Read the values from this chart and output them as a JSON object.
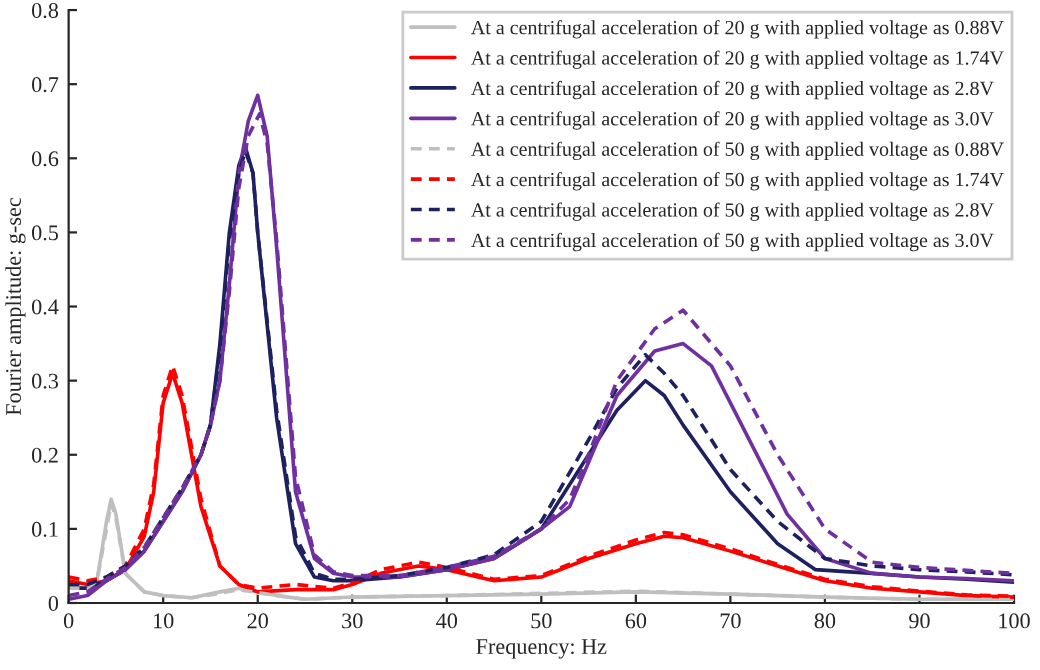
{
  "chart_data": {
    "type": "line",
    "xlabel": "Frequency: Hz",
    "ylabel": "Fourier amplitude: g-sec",
    "xlim": [
      0,
      100
    ],
    "ylim": [
      0,
      0.8
    ],
    "xticks": [
      0,
      10,
      20,
      30,
      40,
      50,
      60,
      70,
      80,
      90,
      100
    ],
    "yticks": [
      0,
      0.1,
      0.2,
      0.3,
      0.4,
      0.5,
      0.6,
      0.7,
      0.8
    ],
    "grid": false,
    "legend": "top right",
    "marker": "none",
    "series": [
      {
        "name": "At a centrifugal acceleration of 20 g with applied voltage as 0.88V",
        "color": "#bfbfbf",
        "line_style": "solid",
        "x": [
          0,
          2,
          3,
          4,
          4.5,
          5,
          6,
          8,
          10,
          13,
          16,
          18,
          20,
          22,
          25,
          30,
          40,
          50,
          60,
          70,
          80,
          90,
          100
        ],
        "values": [
          0.02,
          0.02,
          0.03,
          0.11,
          0.14,
          0.12,
          0.04,
          0.015,
          0.01,
          0.007,
          0.015,
          0.02,
          0.015,
          0.01,
          0.005,
          0.008,
          0.01,
          0.012,
          0.015,
          0.012,
          0.008,
          0.005,
          0.005
        ]
      },
      {
        "name": "At a centrifugal acceleration of 20 g with applied voltage as 1.74V",
        "color": "#ff0000",
        "line_style": "solid",
        "x": [
          0,
          2,
          4,
          6,
          8,
          9,
          10,
          11,
          12,
          14,
          16,
          18,
          20,
          24,
          28,
          30,
          33,
          37,
          40,
          45,
          50,
          55,
          60,
          63,
          65,
          70,
          75,
          80,
          85,
          90,
          95,
          100
        ],
        "values": [
          0.03,
          0.025,
          0.03,
          0.045,
          0.09,
          0.15,
          0.27,
          0.31,
          0.27,
          0.13,
          0.05,
          0.025,
          0.015,
          0.018,
          0.018,
          0.025,
          0.04,
          0.05,
          0.045,
          0.03,
          0.035,
          0.06,
          0.08,
          0.09,
          0.088,
          0.07,
          0.05,
          0.03,
          0.02,
          0.015,
          0.01,
          0.008
        ]
      },
      {
        "name": "At a centrifugal acceleration of 20 g with applied voltage as 2.8V",
        "color": "#1f2060",
        "line_style": "solid",
        "x": [
          0,
          2,
          4,
          6,
          8,
          10,
          12,
          14,
          15,
          16,
          17,
          18,
          18.7,
          19.5,
          20,
          22,
          24,
          26,
          28,
          30,
          35,
          40,
          45,
          50,
          55,
          58,
          61,
          63,
          65,
          70,
          75,
          79,
          85,
          90,
          95,
          100
        ],
        "values": [
          0.02,
          0.02,
          0.03,
          0.045,
          0.07,
          0.11,
          0.15,
          0.2,
          0.24,
          0.35,
          0.5,
          0.59,
          0.615,
          0.58,
          0.5,
          0.25,
          0.08,
          0.035,
          0.03,
          0.03,
          0.035,
          0.045,
          0.06,
          0.1,
          0.2,
          0.26,
          0.3,
          0.28,
          0.24,
          0.15,
          0.08,
          0.045,
          0.04,
          0.035,
          0.032,
          0.028
        ]
      },
      {
        "name": "At a centrifugal acceleration of 20 g with applied voltage as 3.0V",
        "color": "#7030a0",
        "line_style": "solid",
        "x": [
          0,
          2,
          4,
          6,
          8,
          10,
          12,
          14,
          15,
          16,
          17,
          18,
          19,
          20,
          21,
          22,
          24,
          26,
          28,
          30,
          35,
          40,
          45,
          50,
          53,
          55,
          58,
          62,
          65,
          68,
          72,
          76,
          80,
          85,
          90,
          95,
          100
        ],
        "values": [
          0.005,
          0.01,
          0.03,
          0.045,
          0.07,
          0.11,
          0.15,
          0.2,
          0.24,
          0.3,
          0.43,
          0.58,
          0.65,
          0.685,
          0.63,
          0.48,
          0.15,
          0.06,
          0.04,
          0.035,
          0.035,
          0.045,
          0.06,
          0.1,
          0.13,
          0.19,
          0.28,
          0.34,
          0.35,
          0.32,
          0.22,
          0.12,
          0.06,
          0.04,
          0.035,
          0.033,
          0.03
        ]
      },
      {
        "name": "At a centrifugal acceleration of 50 g with applied voltage as 0.88V",
        "color": "#bfbfbf",
        "line_style": "dashed",
        "x": [
          0,
          2,
          3,
          4,
          4.5,
          5,
          6,
          8,
          10,
          13,
          16,
          18,
          20,
          22,
          25,
          30,
          40,
          50,
          60,
          70,
          80,
          90,
          100
        ],
        "values": [
          0.02,
          0.02,
          0.03,
          0.1,
          0.135,
          0.115,
          0.04,
          0.015,
          0.01,
          0.007,
          0.013,
          0.018,
          0.014,
          0.01,
          0.005,
          0.008,
          0.01,
          0.013,
          0.016,
          0.012,
          0.008,
          0.005,
          0.005
        ]
      },
      {
        "name": "At a centrifugal acceleration of 50 g with applied voltage as 1.74V",
        "color": "#ff0000",
        "line_style": "dashed",
        "x": [
          0,
          2,
          4,
          6,
          8,
          9,
          10,
          11,
          12,
          14,
          16,
          18,
          20,
          24,
          28,
          30,
          33,
          37,
          40,
          45,
          50,
          55,
          60,
          63,
          65,
          70,
          75,
          80,
          85,
          90,
          95,
          100
        ],
        "values": [
          0.035,
          0.03,
          0.035,
          0.05,
          0.1,
          0.16,
          0.28,
          0.32,
          0.28,
          0.14,
          0.05,
          0.025,
          0.02,
          0.025,
          0.02,
          0.027,
          0.045,
          0.055,
          0.048,
          0.032,
          0.037,
          0.063,
          0.085,
          0.095,
          0.092,
          0.073,
          0.052,
          0.032,
          0.022,
          0.016,
          0.011,
          0.009
        ]
      },
      {
        "name": "At a centrifugal acceleration of 50 g with applied voltage as 2.8V",
        "color": "#1f2060",
        "line_style": "dashed",
        "x": [
          0,
          2,
          4,
          6,
          8,
          10,
          12,
          14,
          15,
          16,
          17,
          18,
          18.7,
          19.5,
          20,
          22,
          24,
          26,
          28,
          30,
          35,
          40,
          45,
          50,
          55,
          58,
          61,
          63,
          65,
          70,
          75,
          80,
          85,
          90,
          95,
          100
        ],
        "values": [
          0.025,
          0.025,
          0.035,
          0.05,
          0.075,
          0.115,
          0.155,
          0.2,
          0.24,
          0.34,
          0.49,
          0.58,
          0.61,
          0.58,
          0.5,
          0.26,
          0.09,
          0.04,
          0.032,
          0.032,
          0.037,
          0.048,
          0.065,
          0.11,
          0.22,
          0.29,
          0.335,
          0.31,
          0.28,
          0.18,
          0.11,
          0.06,
          0.05,
          0.045,
          0.042,
          0.038
        ]
      },
      {
        "name": "At a centrifugal acceleration of 50 g with applied voltage as 3.0V",
        "color": "#7030a0",
        "line_style": "dashed",
        "x": [
          0,
          2,
          4,
          6,
          8,
          10,
          12,
          14,
          15,
          16,
          17,
          18,
          19,
          20.2,
          21,
          22,
          24,
          26,
          28,
          30,
          35,
          40,
          45,
          50,
          53,
          55,
          58,
          62,
          65,
          70,
          75,
          80,
          85,
          90,
          95,
          100
        ],
        "values": [
          0.01,
          0.015,
          0.032,
          0.048,
          0.075,
          0.115,
          0.155,
          0.2,
          0.24,
          0.3,
          0.42,
          0.56,
          0.63,
          0.66,
          0.62,
          0.49,
          0.17,
          0.065,
          0.042,
          0.037,
          0.037,
          0.048,
          0.063,
          0.1,
          0.14,
          0.2,
          0.3,
          0.37,
          0.395,
          0.32,
          0.2,
          0.1,
          0.055,
          0.048,
          0.044,
          0.04
        ]
      }
    ]
  }
}
